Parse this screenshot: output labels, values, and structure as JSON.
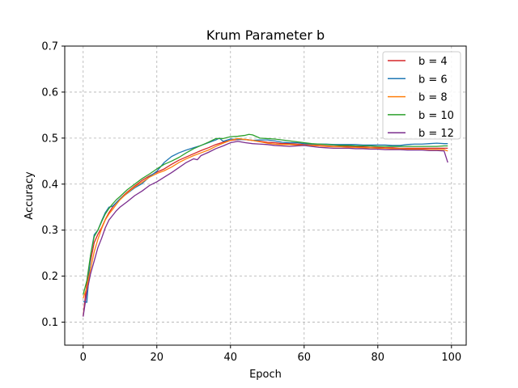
{
  "chart_data": {
    "type": "line",
    "title": "Krum Parameter b",
    "xlabel": "Epoch",
    "ylabel": "Accuracy",
    "xlim": [
      -5,
      104
    ],
    "ylim": [
      0.05,
      0.7
    ],
    "xticks": [
      0,
      20,
      40,
      60,
      80,
      100
    ],
    "yticks": [
      0.1,
      0.2,
      0.3,
      0.4,
      0.5,
      0.6,
      0.7
    ],
    "grid": true,
    "legend_position": "top-right",
    "series": [
      {
        "name": "b = 4",
        "color": "#d62728",
        "points": [
          [
            0,
            0.113
          ],
          [
            1,
            0.185
          ],
          [
            2,
            0.232
          ],
          [
            3,
            0.273
          ],
          [
            4,
            0.291
          ],
          [
            5,
            0.305
          ],
          [
            6,
            0.323
          ],
          [
            7,
            0.338
          ],
          [
            8,
            0.35
          ],
          [
            9,
            0.36
          ],
          [
            10,
            0.368
          ],
          [
            12,
            0.383
          ],
          [
            14,
            0.396
          ],
          [
            16,
            0.408
          ],
          [
            18,
            0.418
          ],
          [
            20,
            0.426
          ],
          [
            22,
            0.433
          ],
          [
            24,
            0.443
          ],
          [
            26,
            0.452
          ],
          [
            28,
            0.459
          ],
          [
            30,
            0.466
          ],
          [
            32,
            0.473
          ],
          [
            34,
            0.479
          ],
          [
            36,
            0.486
          ],
          [
            38,
            0.491
          ],
          [
            40,
            0.495
          ],
          [
            42,
            0.497
          ],
          [
            44,
            0.497
          ],
          [
            46,
            0.495
          ],
          [
            48,
            0.493
          ],
          [
            50,
            0.491
          ],
          [
            52,
            0.49
          ],
          [
            54,
            0.488
          ],
          [
            56,
            0.488
          ],
          [
            58,
            0.487
          ],
          [
            60,
            0.486
          ],
          [
            62,
            0.485
          ],
          [
            64,
            0.484
          ],
          [
            66,
            0.483
          ],
          [
            68,
            0.482
          ],
          [
            70,
            0.482
          ],
          [
            72,
            0.482
          ],
          [
            74,
            0.481
          ],
          [
            76,
            0.481
          ],
          [
            78,
            0.48
          ],
          [
            80,
            0.48
          ],
          [
            82,
            0.479
          ],
          [
            84,
            0.479
          ],
          [
            86,
            0.478
          ],
          [
            88,
            0.478
          ],
          [
            90,
            0.478
          ],
          [
            92,
            0.478
          ],
          [
            94,
            0.478
          ],
          [
            96,
            0.478
          ],
          [
            98,
            0.478
          ],
          [
            99,
            0.478
          ]
        ]
      },
      {
        "name": "b = 6",
        "color": "#1f77b4",
        "points": [
          [
            0,
            0.145
          ],
          [
            1,
            0.143
          ],
          [
            2,
            0.245
          ],
          [
            3,
            0.29
          ],
          [
            4,
            0.3
          ],
          [
            5,
            0.32
          ],
          [
            6,
            0.338
          ],
          [
            7,
            0.35
          ],
          [
            8,
            0.352
          ],
          [
            9,
            0.36
          ],
          [
            10,
            0.368
          ],
          [
            12,
            0.38
          ],
          [
            14,
            0.392
          ],
          [
            16,
            0.401
          ],
          [
            18,
            0.416
          ],
          [
            20,
            0.428
          ],
          [
            22,
            0.447
          ],
          [
            24,
            0.46
          ],
          [
            26,
            0.468
          ],
          [
            28,
            0.474
          ],
          [
            30,
            0.479
          ],
          [
            32,
            0.484
          ],
          [
            34,
            0.49
          ],
          [
            36,
            0.496
          ],
          [
            37,
            0.5
          ],
          [
            38,
            0.493
          ],
          [
            40,
            0.498
          ],
          [
            42,
            0.497
          ],
          [
            44,
            0.497
          ],
          [
            46,
            0.495
          ],
          [
            48,
            0.496
          ],
          [
            50,
            0.496
          ],
          [
            52,
            0.494
          ],
          [
            54,
            0.491
          ],
          [
            56,
            0.49
          ],
          [
            58,
            0.49
          ],
          [
            60,
            0.488
          ],
          [
            62,
            0.487
          ],
          [
            64,
            0.487
          ],
          [
            66,
            0.487
          ],
          [
            68,
            0.486
          ],
          [
            70,
            0.486
          ],
          [
            72,
            0.486
          ],
          [
            74,
            0.486
          ],
          [
            76,
            0.485
          ],
          [
            78,
            0.485
          ],
          [
            80,
            0.485
          ],
          [
            82,
            0.485
          ],
          [
            84,
            0.484
          ],
          [
            86,
            0.484
          ],
          [
            88,
            0.486
          ],
          [
            90,
            0.487
          ],
          [
            92,
            0.487
          ],
          [
            94,
            0.488
          ],
          [
            96,
            0.489
          ],
          [
            98,
            0.488
          ],
          [
            99,
            0.488
          ]
        ]
      },
      {
        "name": "b = 8",
        "color": "#ff7f0e",
        "points": [
          [
            0,
            0.152
          ],
          [
            1,
            0.175
          ],
          [
            2,
            0.215
          ],
          [
            3,
            0.253
          ],
          [
            4,
            0.28
          ],
          [
            5,
            0.303
          ],
          [
            6,
            0.322
          ],
          [
            7,
            0.335
          ],
          [
            8,
            0.345
          ],
          [
            9,
            0.356
          ],
          [
            10,
            0.366
          ],
          [
            12,
            0.381
          ],
          [
            14,
            0.394
          ],
          [
            16,
            0.404
          ],
          [
            18,
            0.415
          ],
          [
            20,
            0.423
          ],
          [
            22,
            0.429
          ],
          [
            24,
            0.437
          ],
          [
            26,
            0.447
          ],
          [
            28,
            0.455
          ],
          [
            30,
            0.462
          ],
          [
            32,
            0.468
          ],
          [
            34,
            0.474
          ],
          [
            36,
            0.482
          ],
          [
            38,
            0.489
          ],
          [
            40,
            0.495
          ],
          [
            42,
            0.499
          ],
          [
            44,
            0.497
          ],
          [
            46,
            0.495
          ],
          [
            48,
            0.492
          ],
          [
            50,
            0.489
          ],
          [
            52,
            0.487
          ],
          [
            54,
            0.486
          ],
          [
            56,
            0.486
          ],
          [
            58,
            0.485
          ],
          [
            60,
            0.485
          ],
          [
            62,
            0.484
          ],
          [
            64,
            0.483
          ],
          [
            66,
            0.482
          ],
          [
            68,
            0.481
          ],
          [
            70,
            0.481
          ],
          [
            72,
            0.48
          ],
          [
            74,
            0.48
          ],
          [
            76,
            0.479
          ],
          [
            78,
            0.479
          ],
          [
            80,
            0.478
          ],
          [
            82,
            0.478
          ],
          [
            84,
            0.477
          ],
          [
            86,
            0.477
          ],
          [
            88,
            0.476
          ],
          [
            90,
            0.476
          ],
          [
            92,
            0.476
          ],
          [
            94,
            0.475
          ],
          [
            96,
            0.475
          ],
          [
            98,
            0.475
          ],
          [
            99,
            0.472
          ]
        ]
      },
      {
        "name": "b = 10",
        "color": "#2ca02c",
        "points": [
          [
            0,
            0.16
          ],
          [
            1,
            0.19
          ],
          [
            2,
            0.245
          ],
          [
            3,
            0.286
          ],
          [
            4,
            0.3
          ],
          [
            5,
            0.318
          ],
          [
            6,
            0.335
          ],
          [
            7,
            0.347
          ],
          [
            8,
            0.357
          ],
          [
            9,
            0.366
          ],
          [
            10,
            0.373
          ],
          [
            12,
            0.388
          ],
          [
            14,
            0.4
          ],
          [
            16,
            0.412
          ],
          [
            18,
            0.422
          ],
          [
            20,
            0.433
          ],
          [
            22,
            0.443
          ],
          [
            24,
            0.45
          ],
          [
            26,
            0.458
          ],
          [
            28,
            0.468
          ],
          [
            30,
            0.477
          ],
          [
            32,
            0.484
          ],
          [
            34,
            0.491
          ],
          [
            36,
            0.499
          ],
          [
            38,
            0.499
          ],
          [
            40,
            0.503
          ],
          [
            42,
            0.504
          ],
          [
            44,
            0.506
          ],
          [
            45,
            0.508
          ],
          [
            46,
            0.507
          ],
          [
            48,
            0.5
          ],
          [
            50,
            0.499
          ],
          [
            52,
            0.498
          ],
          [
            54,
            0.496
          ],
          [
            56,
            0.494
          ],
          [
            58,
            0.492
          ],
          [
            60,
            0.49
          ],
          [
            62,
            0.488
          ],
          [
            64,
            0.487
          ],
          [
            66,
            0.486
          ],
          [
            68,
            0.485
          ],
          [
            70,
            0.484
          ],
          [
            72,
            0.484
          ],
          [
            74,
            0.483
          ],
          [
            76,
            0.483
          ],
          [
            78,
            0.483
          ],
          [
            80,
            0.482
          ],
          [
            82,
            0.482
          ],
          [
            84,
            0.482
          ],
          [
            86,
            0.482
          ],
          [
            88,
            0.482
          ],
          [
            90,
            0.482
          ],
          [
            92,
            0.482
          ],
          [
            94,
            0.482
          ],
          [
            96,
            0.482
          ],
          [
            98,
            0.483
          ],
          [
            99,
            0.483
          ]
        ]
      },
      {
        "name": "b = 12",
        "color": "#7b2d8e",
        "points": [
          [
            0,
            0.112
          ],
          [
            1,
            0.165
          ],
          [
            2,
            0.205
          ],
          [
            3,
            0.233
          ],
          [
            4,
            0.262
          ],
          [
            5,
            0.282
          ],
          [
            6,
            0.305
          ],
          [
            7,
            0.322
          ],
          [
            8,
            0.332
          ],
          [
            9,
            0.342
          ],
          [
            10,
            0.35
          ],
          [
            12,
            0.362
          ],
          [
            14,
            0.375
          ],
          [
            16,
            0.385
          ],
          [
            18,
            0.397
          ],
          [
            20,
            0.405
          ],
          [
            22,
            0.415
          ],
          [
            24,
            0.425
          ],
          [
            26,
            0.436
          ],
          [
            28,
            0.447
          ],
          [
            30,
            0.455
          ],
          [
            31,
            0.453
          ],
          [
            32,
            0.462
          ],
          [
            34,
            0.469
          ],
          [
            36,
            0.477
          ],
          [
            38,
            0.483
          ],
          [
            40,
            0.49
          ],
          [
            42,
            0.493
          ],
          [
            44,
            0.49
          ],
          [
            46,
            0.488
          ],
          [
            48,
            0.487
          ],
          [
            50,
            0.486
          ],
          [
            52,
            0.484
          ],
          [
            54,
            0.483
          ],
          [
            56,
            0.482
          ],
          [
            58,
            0.483
          ],
          [
            60,
            0.484
          ],
          [
            62,
            0.482
          ],
          [
            64,
            0.48
          ],
          [
            66,
            0.479
          ],
          [
            68,
            0.478
          ],
          [
            70,
            0.478
          ],
          [
            72,
            0.478
          ],
          [
            74,
            0.477
          ],
          [
            76,
            0.477
          ],
          [
            78,
            0.476
          ],
          [
            80,
            0.476
          ],
          [
            82,
            0.475
          ],
          [
            84,
            0.475
          ],
          [
            86,
            0.475
          ],
          [
            88,
            0.474
          ],
          [
            90,
            0.474
          ],
          [
            92,
            0.474
          ],
          [
            94,
            0.473
          ],
          [
            96,
            0.473
          ],
          [
            98,
            0.472
          ],
          [
            99,
            0.447
          ]
        ]
      }
    ]
  }
}
